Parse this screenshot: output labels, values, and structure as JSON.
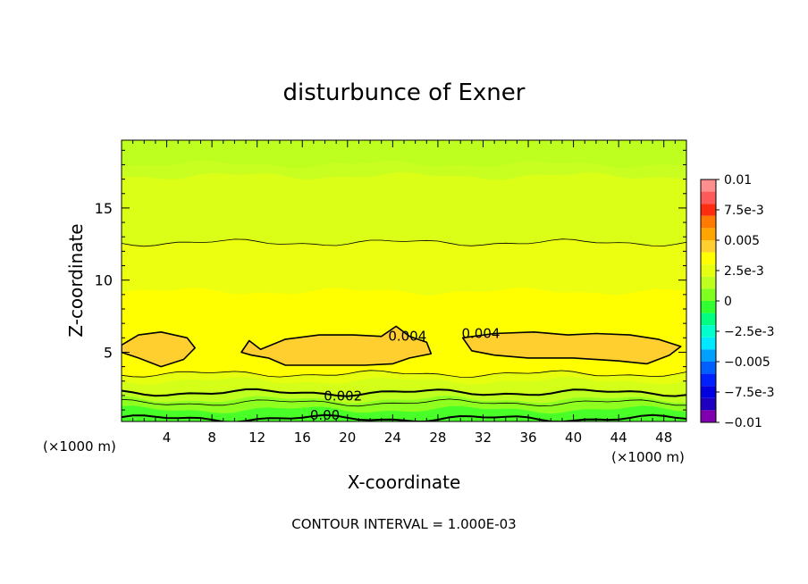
{
  "chart_data": {
    "type": "heatmap",
    "title": "disturbunce of Exner",
    "xlabel": "X-coordinate",
    "ylabel": "Z-coordinate",
    "x_unit": "(×1000 m)",
    "x_unit_right": "(×1000 m)",
    "xlim": [
      0,
      50
    ],
    "ylim": [
      0.2,
      19.7
    ],
    "x_ticks": [
      4,
      8,
      12,
      16,
      20,
      24,
      28,
      32,
      36,
      40,
      44,
      48
    ],
    "x_tick_labels": [
      "4",
      "8",
      "12",
      "16",
      "20",
      "24",
      "28",
      "32",
      "36",
      "40",
      "44",
      "48"
    ],
    "y_ticks": [
      5,
      10,
      15
    ],
    "y_tick_labels": [
      "5",
      "10",
      "15"
    ],
    "footer": "CONTOUR INTERVAL = 1.000E-03",
    "colorbar": {
      "labels": [
        "0.01",
        "7.5e-3",
        "0.005",
        "2.5e-3",
        "0",
        "−2.5e-3",
        "−0.005",
        "−7.5e-3",
        "−0.01"
      ],
      "label_values": [
        0.01,
        0.0075,
        0.005,
        0.0025,
        0,
        -0.0025,
        -0.005,
        -0.0075,
        -0.01
      ],
      "min": -0.01,
      "max": 0.01,
      "bins": [
        {
          "lo": 0.009,
          "hi": 0.01,
          "color": "#ff8e8e"
        },
        {
          "lo": 0.008,
          "hi": 0.009,
          "color": "#ff5a5a"
        },
        {
          "lo": 0.007,
          "hi": 0.008,
          "color": "#ff2d10"
        },
        {
          "lo": 0.006,
          "hi": 0.007,
          "color": "#ff7a00"
        },
        {
          "lo": 0.005,
          "hi": 0.006,
          "color": "#ffa500"
        },
        {
          "lo": 0.004,
          "hi": 0.005,
          "color": "#ffcf30"
        },
        {
          "lo": 0.003,
          "hi": 0.004,
          "color": "#ffff00"
        },
        {
          "lo": 0.002,
          "hi": 0.003,
          "color": "#e6ff10"
        },
        {
          "lo": 0.001,
          "hi": 0.002,
          "color": "#bfff20"
        },
        {
          "lo": 0.0,
          "hi": 0.001,
          "color": "#7fff20"
        },
        {
          "lo": -0.001,
          "hi": 0.0,
          "color": "#30ff30"
        },
        {
          "lo": -0.002,
          "hi": -0.001,
          "color": "#00ff80"
        },
        {
          "lo": -0.003,
          "hi": -0.002,
          "color": "#00ffcc"
        },
        {
          "lo": -0.004,
          "hi": -0.003,
          "color": "#00e8ff"
        },
        {
          "lo": -0.005,
          "hi": -0.004,
          "color": "#00a0ff"
        },
        {
          "lo": -0.006,
          "hi": -0.005,
          "color": "#0060ff"
        },
        {
          "lo": -0.007,
          "hi": -0.006,
          "color": "#0020ff"
        },
        {
          "lo": -0.008,
          "hi": -0.007,
          "color": "#0000e0"
        },
        {
          "lo": -0.009,
          "hi": -0.008,
          "color": "#2000c0"
        },
        {
          "lo": -0.01,
          "hi": -0.009,
          "color": "#8000b0"
        }
      ]
    },
    "bands": [
      {
        "z_bottom": 18.0,
        "z_top": 19.7,
        "value": 0.0015,
        "color": "#bfff20"
      },
      {
        "z_bottom": 17.2,
        "z_top": 18.0,
        "value": 0.0018,
        "color": "#c8ff20"
      },
      {
        "z_bottom": 12.6,
        "z_top": 17.2,
        "value": 0.0022,
        "color": "#dcff18"
      },
      {
        "z_bottom": 9.2,
        "z_top": 12.6,
        "value": 0.0028,
        "color": "#ecff10"
      },
      {
        "z_bottom": 3.5,
        "z_top": 9.2,
        "value": 0.0035,
        "color": "#ffff00"
      },
      {
        "z_bottom": 3.0,
        "z_top": 3.5,
        "value": 0.0028,
        "color": "#e6ff10"
      },
      {
        "z_bottom": 2.3,
        "z_top": 3.0,
        "value": 0.0022,
        "color": "#d4ff18"
      },
      {
        "z_bottom": 1.7,
        "z_top": 2.3,
        "value": 0.0015,
        "color": "#bfff20"
      },
      {
        "z_bottom": 1.0,
        "z_top": 1.7,
        "value": 0.0008,
        "color": "#8fff20"
      },
      {
        "z_bottom": 0.2,
        "z_top": 1.0,
        "value": 0.0003,
        "color": "#48ff28"
      }
    ],
    "contour_lines": [
      {
        "level": 0.0022,
        "z": 12.6,
        "bold": false
      },
      {
        "level": 0.003,
        "z": 3.5,
        "bold": false
      },
      {
        "level": 0.002,
        "z": 2.2,
        "bold": true,
        "label": "0.002",
        "label_x": 19.6
      },
      {
        "level": 0.001,
        "z": 1.5,
        "bold": false
      },
      {
        "level": 0.0,
        "z": 0.4,
        "bold": true,
        "label": "0.00",
        "label_x": 18.0
      }
    ],
    "regions": [
      {
        "level": 0.004,
        "color": "#ffcf30",
        "label": "",
        "outline": [
          [
            0,
            5.5
          ],
          [
            1.5,
            6.2
          ],
          [
            3.5,
            6.4
          ],
          [
            5.8,
            6.0
          ],
          [
            6.5,
            5.3
          ],
          [
            5.5,
            4.5
          ],
          [
            3.5,
            4.0
          ],
          [
            1.5,
            4.6
          ],
          [
            0,
            5.0
          ]
        ]
      },
      {
        "level": 0.004,
        "color": "#ffcf30",
        "label": "0.004",
        "label_x": 25.3,
        "label_z": 5.8,
        "outline": [
          [
            10.6,
            5.0
          ],
          [
            11.3,
            5.8
          ],
          [
            12.3,
            5.2
          ],
          [
            14.5,
            5.9
          ],
          [
            17.5,
            6.2
          ],
          [
            20.5,
            6.2
          ],
          [
            23.0,
            6.1
          ],
          [
            24.3,
            6.8
          ],
          [
            25.5,
            6.1
          ],
          [
            27.0,
            5.7
          ],
          [
            27.4,
            4.9
          ],
          [
            25.5,
            4.6
          ],
          [
            24.0,
            4.2
          ],
          [
            21.5,
            4.1
          ],
          [
            18.0,
            4.1
          ],
          [
            14.5,
            4.1
          ],
          [
            13.0,
            4.6
          ],
          [
            11.5,
            4.8
          ]
        ]
      },
      {
        "level": 0.004,
        "color": "#ffcf30",
        "label": "0.004",
        "label_x": 31.8,
        "label_z": 6.0,
        "outline": [
          [
            30.2,
            6.0
          ],
          [
            33.0,
            6.3
          ],
          [
            36.5,
            6.4
          ],
          [
            39.5,
            6.2
          ],
          [
            42.0,
            6.3
          ],
          [
            45.0,
            6.2
          ],
          [
            47.5,
            5.9
          ],
          [
            49.5,
            5.4
          ],
          [
            48.5,
            4.8
          ],
          [
            46.5,
            4.2
          ],
          [
            44.0,
            4.4
          ],
          [
            40.0,
            4.6
          ],
          [
            36.0,
            4.6
          ],
          [
            33.0,
            4.8
          ],
          [
            31.0,
            5.1
          ]
        ]
      }
    ]
  }
}
